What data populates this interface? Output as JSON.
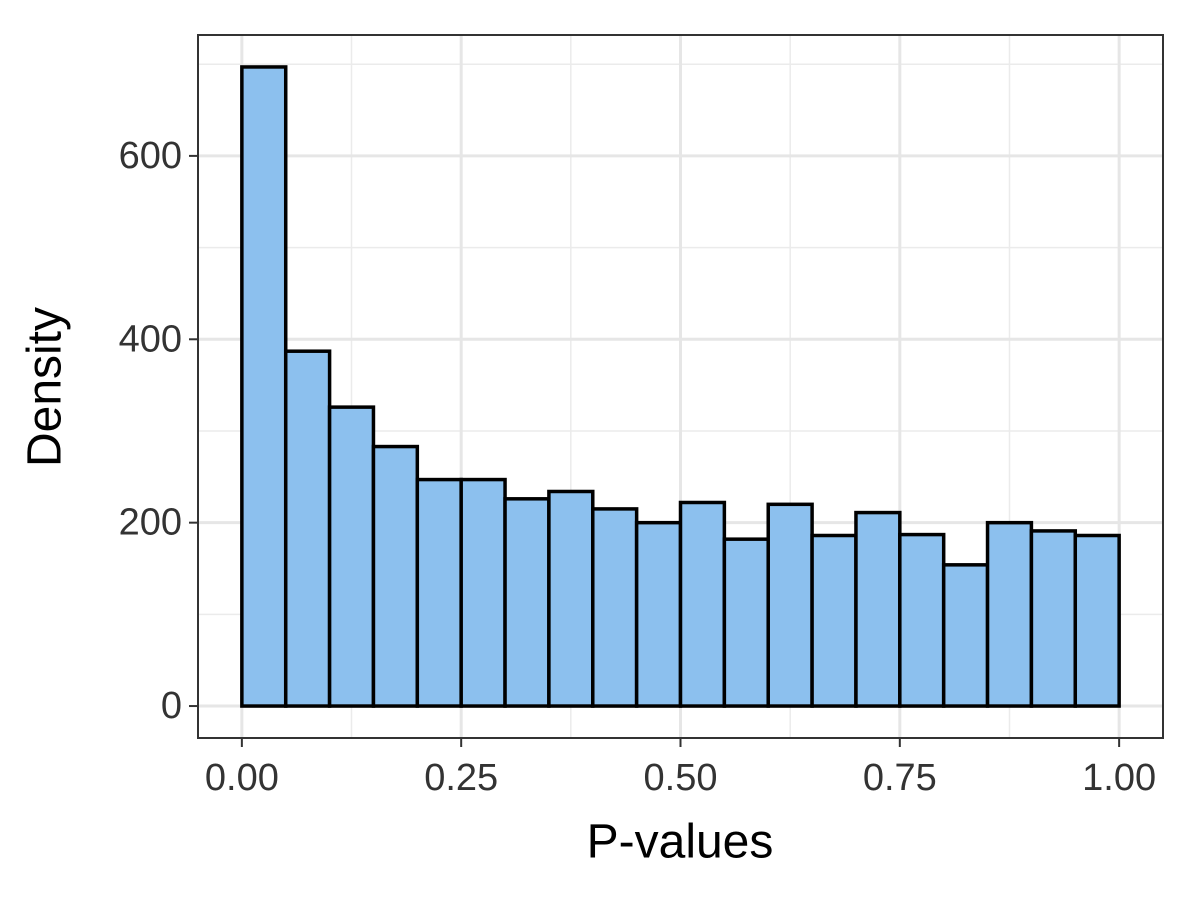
{
  "chart_data": {
    "type": "histogram",
    "x_label": "P-values",
    "y_label": "Density",
    "bins": [
      0,
      0.05,
      0.1,
      0.15,
      0.2,
      0.25,
      0.3,
      0.35,
      0.4,
      0.45,
      0.5,
      0.55,
      0.6,
      0.65,
      0.7,
      0.75,
      0.8,
      0.85,
      0.9,
      0.95,
      1.0
    ],
    "values": [
      697,
      387,
      326,
      283,
      247,
      247,
      226,
      234,
      215,
      200,
      222,
      182,
      220,
      186,
      211,
      187,
      154,
      200,
      191,
      186
    ],
    "color": "#8cc0ee",
    "edge_color": "#000000",
    "xlim": [
      -0.05,
      1.05
    ],
    "xticks": [
      {
        "value": 0,
        "label": "0.00"
      },
      {
        "value": 0.25,
        "label": "0.25"
      },
      {
        "value": 0.5,
        "label": "0.50"
      },
      {
        "value": 0.75,
        "label": "0.75"
      },
      {
        "value": 1,
        "label": "1.00"
      }
    ],
    "ylim": [
      -34.85,
      731.85
    ],
    "yticks": [
      0,
      200,
      400,
      600
    ],
    "grid": true
  }
}
